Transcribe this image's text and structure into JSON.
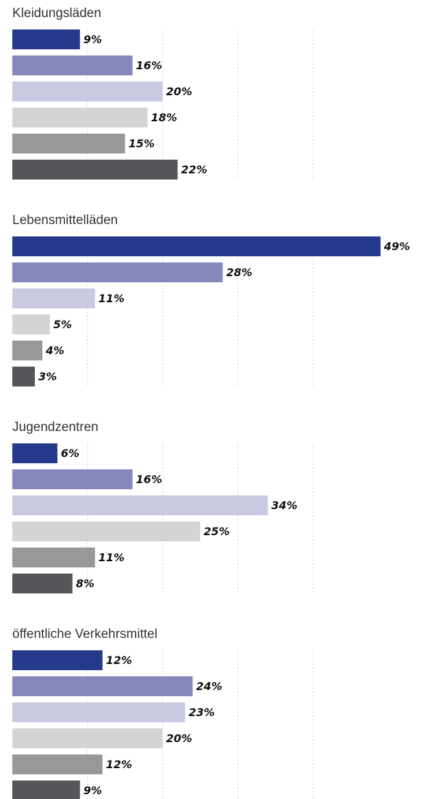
{
  "chart_data": [
    {
      "type": "bar",
      "orientation": "horizontal",
      "title": "Kleidungsläden",
      "values": [
        9,
        16,
        20,
        18,
        15,
        22
      ],
      "value_labels": [
        "9%",
        "16%",
        "20%",
        "18%",
        "15%",
        "22%"
      ],
      "colors": [
        "#253a8a",
        "#8687bb",
        "#c9c9e3",
        "#d4d4d5",
        "#98989b",
        "#55565a"
      ],
      "xlim": [
        0,
        50
      ],
      "xticks": [
        10,
        20,
        30,
        40
      ],
      "grid": true
    },
    {
      "type": "bar",
      "orientation": "horizontal",
      "title": "Lebensmittelläden",
      "values": [
        49,
        28,
        11,
        5,
        4,
        3
      ],
      "value_labels": [
        "49%",
        "28%",
        "11%",
        "5%",
        "4%",
        "3%"
      ],
      "colors": [
        "#253a8a",
        "#8687bb",
        "#c9c9e3",
        "#d4d4d5",
        "#98989b",
        "#55565a"
      ],
      "xlim": [
        0,
        50
      ],
      "xticks": [
        10,
        20,
        30,
        40
      ],
      "grid": true
    },
    {
      "type": "bar",
      "orientation": "horizontal",
      "title": "Jugendzentren",
      "values": [
        6,
        16,
        34,
        25,
        11,
        8
      ],
      "value_labels": [
        "6%",
        "16%",
        "34%",
        "25%",
        "11%",
        "8%"
      ],
      "colors": [
        "#253a8a",
        "#8687bb",
        "#c9c9e3",
        "#d4d4d5",
        "#98989b",
        "#55565a"
      ],
      "xlim": [
        0,
        50
      ],
      "xticks": [
        10,
        20,
        30,
        40
      ],
      "grid": true
    },
    {
      "type": "bar",
      "orientation": "horizontal",
      "title": "öffentliche Verkehrsmittel",
      "values": [
        12,
        24,
        23,
        20,
        12,
        9
      ],
      "value_labels": [
        "12%",
        "24%",
        "23%",
        "20%",
        "12%",
        "9%"
      ],
      "colors": [
        "#253a8a",
        "#8687bb",
        "#c9c9e3",
        "#d4d4d5",
        "#98989b",
        "#55565a"
      ],
      "xlim": [
        0,
        50
      ],
      "xticks": [
        10,
        20,
        30,
        40
      ],
      "grid": true
    }
  ]
}
